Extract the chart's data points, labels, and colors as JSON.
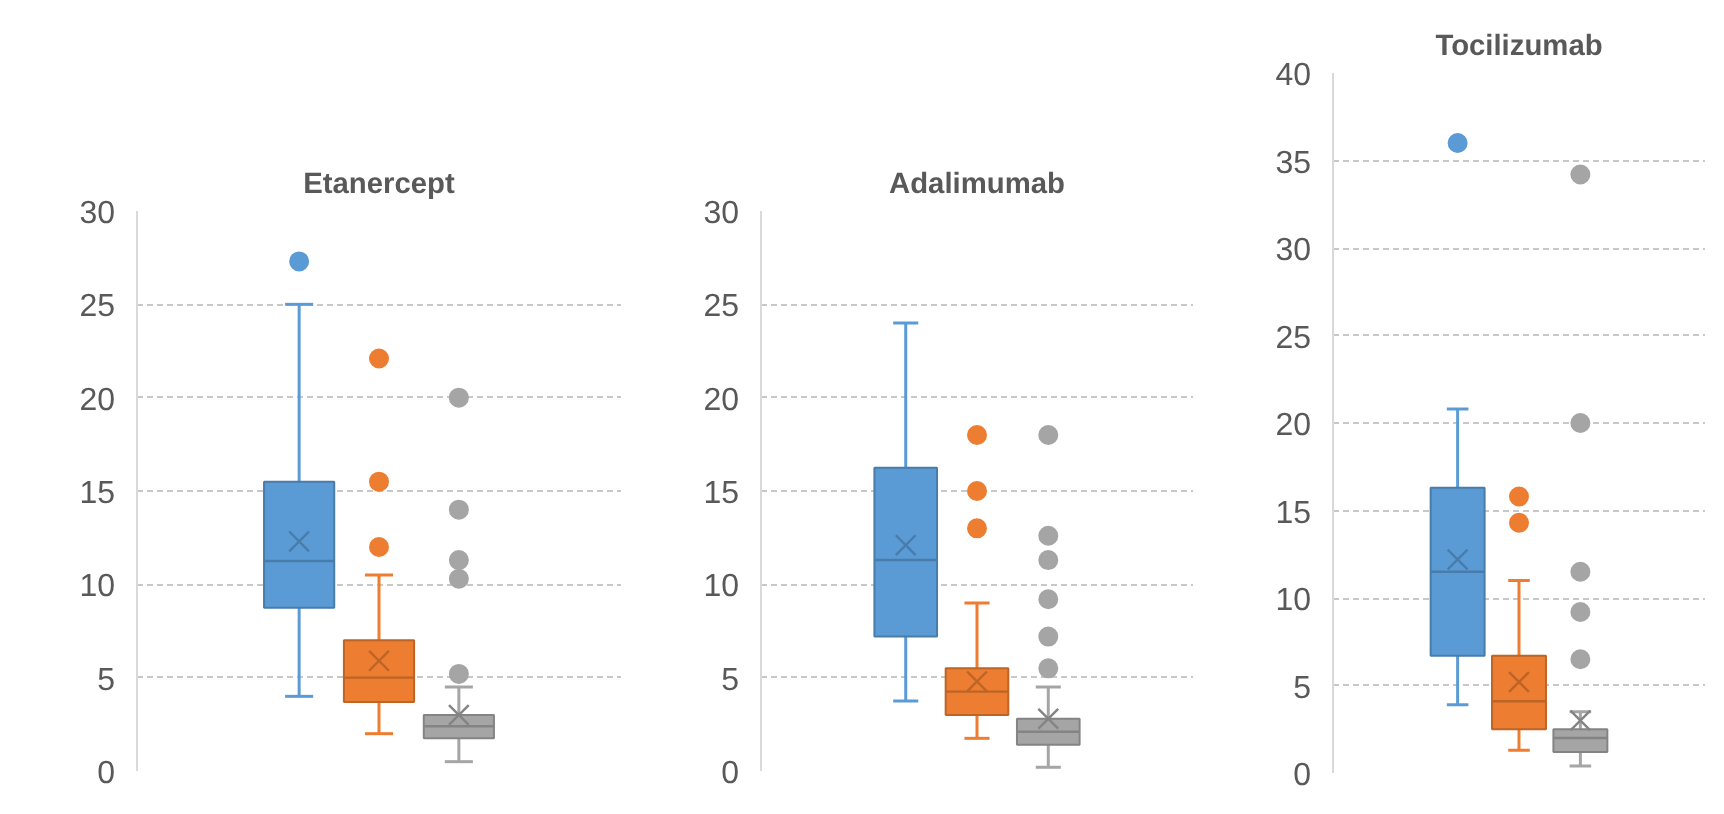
{
  "chart_data": [
    {
      "type": "box",
      "title": "Etanercept",
      "categories": [
        null
      ],
      "ylim": [
        0,
        30
      ],
      "yticks": [
        0,
        5,
        10,
        15,
        20,
        25,
        30
      ],
      "grid": "y",
      "tick_labels": "y",
      "series": [
        {
          "color": "#5b9bd5",
          "boxes": [
            {
              "low": 4.0,
              "q1": 8.75,
              "median": 11.25,
              "q3": 15.5,
              "high": 25,
              "mean": 12.3,
              "outliers": [
                27.3
              ]
            }
          ]
        },
        {
          "color": "#ed7d31",
          "boxes": [
            {
              "low": 2.0,
              "q1": 3.7,
              "median": 5.0,
              "q3": 7.0,
              "high": 10.5,
              "mean": 5.9,
              "outliers": [
                22.1,
                15.5,
                12.0
              ]
            }
          ]
        },
        {
          "color": "#a5a5a5",
          "boxes": [
            {
              "low": 0.5,
              "q1": 1.75,
              "median": 2.4,
              "q3": 3.0,
              "high": 4.5,
              "mean": 3.0,
              "outliers": [
                20.0,
                14.0,
                11.3,
                10.3,
                5.2
              ]
            }
          ]
        }
      ]
    },
    {
      "type": "box",
      "title": "Adalimumab",
      "categories": [
        null
      ],
      "ylim": [
        0,
        30
      ],
      "yticks": [
        0,
        5,
        10,
        15,
        20,
        25,
        30
      ],
      "grid": "y",
      "tick_labels": "y",
      "series": [
        {
          "color": "#5b9bd5",
          "boxes": [
            {
              "low": 3.75,
              "q1": 7.2,
              "median": 11.3,
              "q3": 16.25,
              "high": 24.0,
              "mean": 12.1
            }
          ]
        },
        {
          "color": "#ed7d31",
          "boxes": [
            {
              "low": 1.75,
              "q1": 3.0,
              "median": 4.25,
              "q3": 5.5,
              "high": 9.0,
              "mean": 4.8,
              "outliers": [
                18.0,
                15.0,
                13.0
              ]
            }
          ]
        },
        {
          "color": "#a5a5a5",
          "boxes": [
            {
              "low": 0.2,
              "q1": 1.4,
              "median": 2.1,
              "q3": 2.8,
              "high": 4.5,
              "mean": 2.8,
              "outliers": [
                18.0,
                12.6,
                11.3,
                9.2,
                7.2,
                5.5
              ]
            }
          ]
        }
      ]
    },
    {
      "type": "box",
      "title": "Tocilizumab",
      "categories": [
        null
      ],
      "ylim": [
        0,
        40
      ],
      "yticks": [
        0,
        5,
        10,
        15,
        20,
        25,
        30,
        35,
        40
      ],
      "grid": "y",
      "tick_labels": "y",
      "series": [
        {
          "color": "#5b9bd5",
          "boxes": [
            {
              "low": 3.9,
              "q1": 6.7,
              "median": 11.5,
              "q3": 16.3,
              "high": 20.8,
              "mean": 12.2,
              "outliers": [
                36.0
              ]
            }
          ]
        },
        {
          "color": "#ed7d31",
          "boxes": [
            {
              "low": 1.3,
              "q1": 2.5,
              "median": 4.1,
              "q3": 6.7,
              "high": 11.0,
              "mean": 5.2,
              "outliers": [
                15.8,
                14.3
              ]
            }
          ]
        },
        {
          "color": "#a5a5a5",
          "boxes": [
            {
              "low": 0.4,
              "q1": 1.2,
              "median": 2.0,
              "q3": 2.5,
              "high": 3.5,
              "mean": 3.0,
              "outliers": [
                34.2,
                20.0,
                11.5,
                9.2,
                6.5
              ]
            }
          ]
        }
      ]
    }
  ]
}
